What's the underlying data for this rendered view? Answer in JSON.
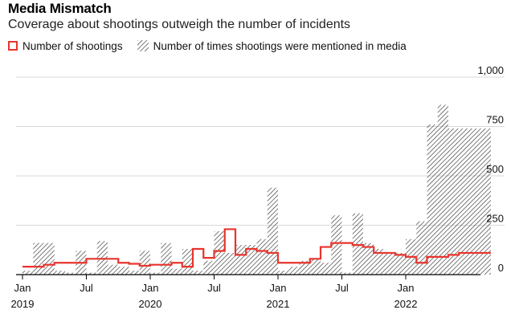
{
  "header": {
    "title": "Media Mismatch",
    "subtitle": "Coverage about shootings outweigh the number of incidents"
  },
  "legend": {
    "shootings_label": "Number of shootings",
    "media_label": "Number of times shootings were mentioned in media"
  },
  "colors": {
    "shootings": "#e8342d",
    "media_hatch": "#333333",
    "grid": "#d9d9d9",
    "axis": "#000000"
  },
  "chart_data": {
    "type": "area",
    "title": "Media Mismatch",
    "subtitle": "Coverage about shootings outweigh the number of incidents",
    "x_unit": "month",
    "y_range": [
      0,
      1000
    ],
    "y_ticks": [
      0,
      250,
      500,
      750,
      1000
    ],
    "y_tick_labels": [
      "0",
      "250",
      "500",
      "750",
      "1,000"
    ],
    "x_ticks": [
      {
        "month": "2019-01",
        "line1": "Jan",
        "line2": "2019"
      },
      {
        "month": "2019-07",
        "line1": "Jul",
        "line2": ""
      },
      {
        "month": "2020-01",
        "line1": "Jan",
        "line2": "2020"
      },
      {
        "month": "2020-07",
        "line1": "Jul",
        "line2": ""
      },
      {
        "month": "2021-01",
        "line1": "Jan",
        "line2": "2021"
      },
      {
        "month": "2021-07",
        "line1": "Jul",
        "line2": ""
      },
      {
        "month": "2022-01",
        "line1": "Jan",
        "line2": "2022"
      }
    ],
    "months": [
      "2019-01",
      "2019-02",
      "2019-03",
      "2019-04",
      "2019-05",
      "2019-06",
      "2019-07",
      "2019-08",
      "2019-09",
      "2019-10",
      "2019-11",
      "2019-12",
      "2020-01",
      "2020-02",
      "2020-03",
      "2020-04",
      "2020-05",
      "2020-06",
      "2020-07",
      "2020-08",
      "2020-09",
      "2020-10",
      "2020-11",
      "2020-12",
      "2021-01",
      "2021-02",
      "2021-03",
      "2021-04",
      "2021-05",
      "2021-06",
      "2021-07",
      "2021-08",
      "2021-09",
      "2021-10",
      "2021-11",
      "2021-12",
      "2022-01",
      "2022-02",
      "2022-03",
      "2022-04",
      "2022-05",
      "2022-06",
      "2022-07",
      "2022-08"
    ],
    "series": [
      {
        "name": "Number of times shootings were mentioned in media",
        "style": "hatched-area",
        "values": [
          20,
          160,
          160,
          20,
          10,
          120,
          10,
          170,
          50,
          40,
          20,
          120,
          10,
          160,
          30,
          130,
          20,
          70,
          220,
          110,
          150,
          150,
          180,
          440,
          20,
          40,
          70,
          80,
          60,
          300,
          10,
          310,
          160,
          130,
          110,
          110,
          180,
          270,
          760,
          860,
          740,
          740,
          740,
          740
        ]
      },
      {
        "name": "Number of shootings",
        "style": "step-line",
        "values": [
          40,
          40,
          50,
          60,
          60,
          60,
          80,
          80,
          80,
          60,
          55,
          45,
          50,
          50,
          60,
          40,
          130,
          85,
          120,
          230,
          100,
          130,
          120,
          110,
          60,
          60,
          60,
          80,
          140,
          160,
          160,
          150,
          140,
          110,
          110,
          100,
          90,
          60,
          90,
          90,
          100,
          110,
          110,
          110
        ]
      }
    ]
  }
}
